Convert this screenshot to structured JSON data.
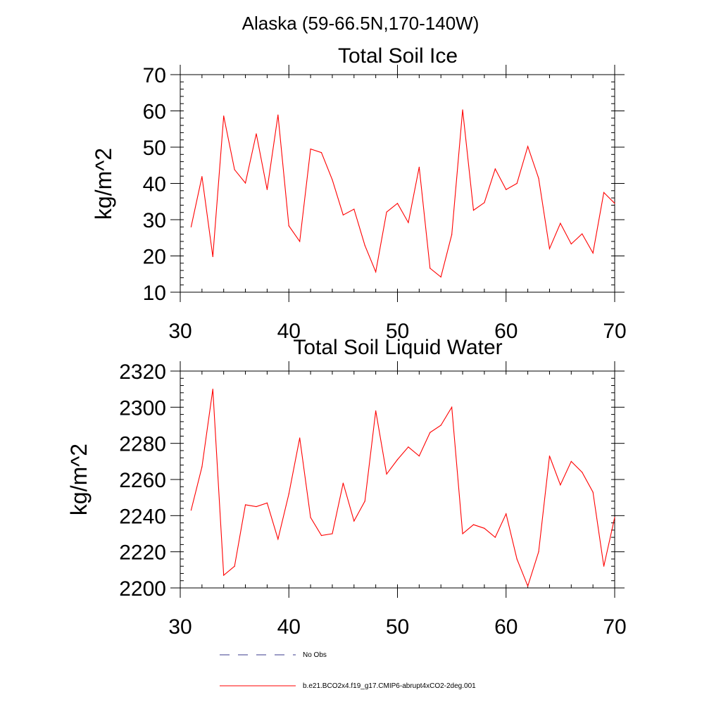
{
  "suptitle": "Alaska (59-66.5N,170-140W)",
  "colors": {
    "series": "#ff0000",
    "obs": "#3a3a8c",
    "axis": "#000000",
    "background": "#ffffff"
  },
  "legend": {
    "obs_label": "No Obs",
    "model_label": "b.e21.BCO2x4.f19_g17.CMIP6-abrupt4xCO2-2deg.001"
  },
  "chart_data": [
    {
      "type": "line",
      "title": "Total Soil Ice",
      "xlabel": "",
      "ylabel": "kg/m^2",
      "xlim": [
        30,
        70
      ],
      "ylim": [
        10,
        70
      ],
      "xticks": [
        30,
        40,
        50,
        60,
        70
      ],
      "yticks": [
        10,
        20,
        30,
        40,
        50,
        60,
        70
      ],
      "x_minor_step": 2,
      "y_minor_step": 2,
      "series": [
        {
          "name": "b.e21.BCO2x4.f19_g17.CMIP6-abrupt4xCO2-2deg.001",
          "x": [
            31,
            32,
            33,
            34,
            35,
            36,
            37,
            38,
            39,
            40,
            41,
            42,
            43,
            44,
            45,
            46,
            47,
            48,
            49,
            50,
            51,
            52,
            53,
            54,
            55,
            56,
            57,
            58,
            59,
            60,
            61,
            62,
            63,
            64,
            65,
            66,
            67,
            68,
            69,
            70
          ],
          "values": [
            28.0,
            41.9,
            19.8,
            58.6,
            43.8,
            40.1,
            53.7,
            38.3,
            58.9,
            28.3,
            24.0,
            49.5,
            48.5,
            41.0,
            31.3,
            32.9,
            22.9,
            15.6,
            32.1,
            34.5,
            29.2,
            44.5,
            16.6,
            14.2,
            25.9,
            60.3,
            32.6,
            34.7,
            44.0,
            38.3,
            40.0,
            50.2,
            41.4,
            22.0,
            29.0,
            23.3,
            26.1,
            20.8,
            37.5,
            34.5
          ]
        }
      ]
    },
    {
      "type": "line",
      "title": "Total Soil Liquid Water",
      "xlabel": "",
      "ylabel": "kg/m^2",
      "xlim": [
        30,
        70
      ],
      "ylim": [
        2200,
        2320
      ],
      "xticks": [
        30,
        40,
        50,
        60,
        70
      ],
      "yticks": [
        2200,
        2220,
        2240,
        2260,
        2280,
        2300,
        2320
      ],
      "x_minor_step": 2,
      "y_minor_step": 4,
      "series": [
        {
          "name": "b.e21.BCO2x4.f19_g17.CMIP6-abrupt4xCO2-2deg.001",
          "x": [
            31,
            32,
            33,
            34,
            35,
            36,
            37,
            38,
            39,
            40,
            41,
            42,
            43,
            44,
            45,
            46,
            47,
            48,
            49,
            50,
            51,
            52,
            53,
            54,
            55,
            56,
            57,
            58,
            59,
            60,
            61,
            62,
            63,
            64,
            65,
            66,
            67,
            68,
            69,
            70
          ],
          "values": [
            2243,
            2267,
            2310,
            2207,
            2212,
            2246,
            2245,
            2247,
            2227,
            2252,
            2283,
            2239,
            2229,
            2230,
            2258,
            2237,
            2248,
            2298,
            2263,
            2271,
            2278,
            2273,
            2286,
            2290,
            2300,
            2230,
            2235,
            2233,
            2228,
            2241,
            2216,
            2201,
            2220,
            2273,
            2257,
            2270,
            2264,
            2253,
            2212,
            2239
          ]
        }
      ]
    }
  ]
}
